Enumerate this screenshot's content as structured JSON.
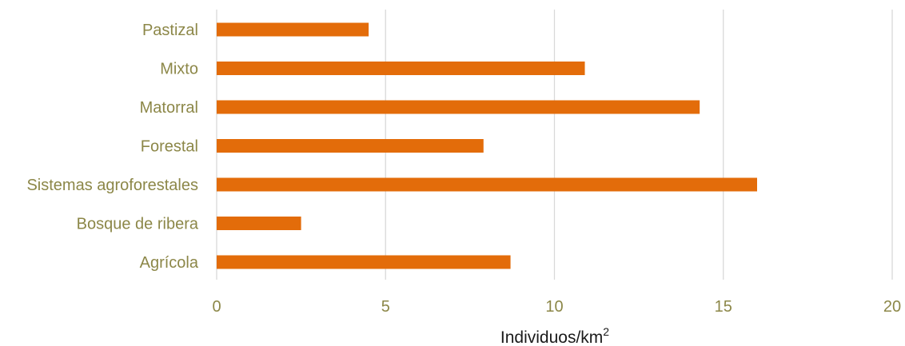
{
  "chart_data": {
    "type": "bar",
    "orientation": "horizontal",
    "categories": [
      "Pastizal",
      "Mixto",
      "Matorral",
      "Forestal",
      "Sistemas agroforestales",
      "Bosque de ribera",
      "Agrícola"
    ],
    "values": [
      4.5,
      10.9,
      14.3,
      7.9,
      16.0,
      2.5,
      8.7
    ],
    "xlabel": "Individuos/km",
    "xlabel_superscript": "2",
    "xlim": [
      0,
      20
    ],
    "xticks": [
      0,
      5,
      10,
      15,
      20
    ],
    "xtick_labels": [
      "0",
      "5",
      "10",
      "15",
      "20"
    ],
    "grid": "vertical",
    "legend": "none",
    "colors": {
      "bar": "#e36c0a",
      "label": "#8c8748",
      "grid": "#d9d9d9",
      "axis_title": "#1a1a1a"
    }
  }
}
